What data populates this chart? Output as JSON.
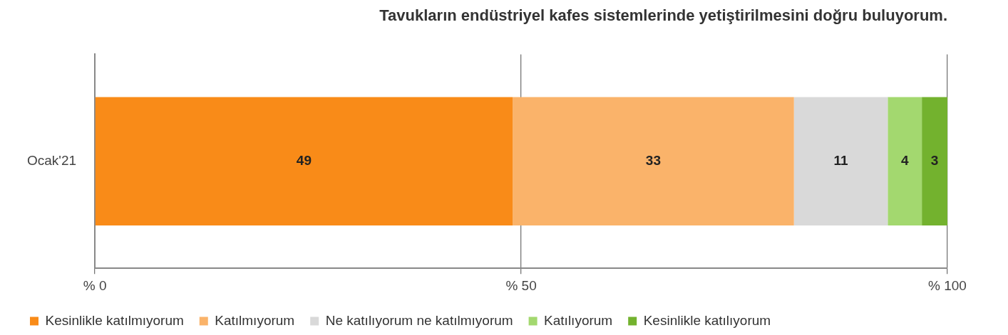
{
  "chart_data": {
    "type": "bar",
    "orientation": "horizontal",
    "stacked": true,
    "title": "Tavukların endüstriyel kafes sistemlerinde yetiştirilmesini doğru buluyorum.",
    "categories": [
      "Ocak'21"
    ],
    "series": [
      {
        "name": "Kesinlikle katılmıyorum",
        "color": "#f98b18",
        "values": [
          49
        ]
      },
      {
        "name": "Katılmıyorum",
        "color": "#fab36a",
        "values": [
          33
        ]
      },
      {
        "name": "Ne katılıyorum ne katılmıyorum",
        "color": "#d9d9d9",
        "values": [
          11
        ]
      },
      {
        "name": "Katılıyorum",
        "color": "#a3d86f",
        "values": [
          4
        ]
      },
      {
        "name": "Kesinlikle katılıyorum",
        "color": "#73b22e",
        "values": [
          3
        ]
      }
    ],
    "xlim": [
      0,
      100
    ],
    "xticks": [
      {
        "value": 0,
        "label": "% 0"
      },
      {
        "value": 50,
        "label": "% 50"
      },
      {
        "value": 100,
        "label": "% 100"
      }
    ],
    "grid": "x",
    "legend": "bottom",
    "data_labels": true
  }
}
